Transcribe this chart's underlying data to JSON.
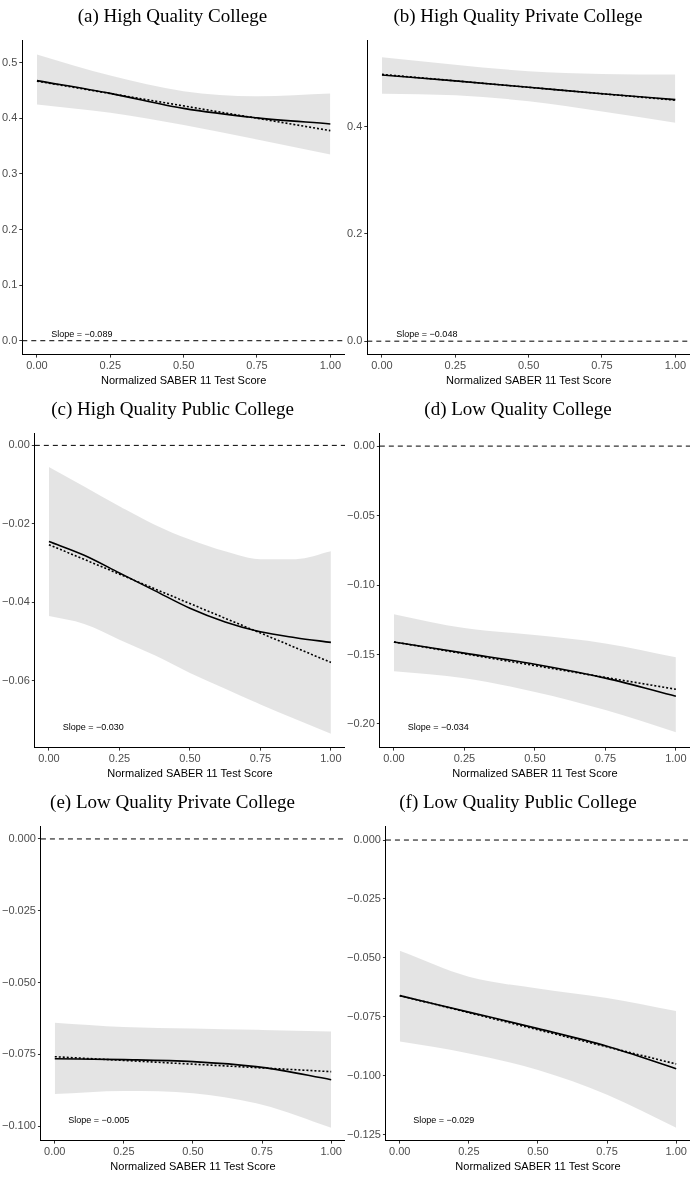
{
  "chart_data": [
    {
      "type": "line",
      "title": "(a) High Quality College",
      "xlabel": "Normalized SABER 11 Test Score",
      "xlim": [
        -0.05,
        1.05
      ],
      "xticks": [
        {
          "value": 0,
          "label": "0.00"
        },
        {
          "value": 0.25,
          "label": "0.25"
        },
        {
          "value": 0.5,
          "label": "0.50"
        },
        {
          "value": 0.75,
          "label": "0.75"
        },
        {
          "value": 1,
          "label": "1.00"
        }
      ],
      "ylim": [
        -0.025,
        0.54
      ],
      "yticks": [
        {
          "value": 0,
          "label": "0.0"
        },
        0.1,
        0.2,
        0.3,
        0.4,
        0.5
      ],
      "grid": false,
      "legend": false,
      "marker": "none",
      "ref_lines": [
        {
          "axis": "y",
          "value": 0,
          "line_style": "dashed",
          "color": "#000000"
        }
      ],
      "annotations": [
        "Slope = −0.089"
      ],
      "series": [
        {
          "color": "#000000",
          "line_style": "solid",
          "x": [
            0,
            0.25,
            0.5,
            0.75,
            1
          ],
          "values": [
            0.468,
            0.445,
            0.418,
            0.401,
            0.39
          ],
          "lower": [
            0.425,
            0.41,
            0.388,
            0.362,
            0.335
          ],
          "upper": [
            0.515,
            0.477,
            0.449,
            0.44,
            0.445
          ]
        },
        {
          "color": "#000000",
          "line_style": "dotted",
          "x": [
            0,
            1
          ],
          "values": [
            0.467,
            0.378
          ]
        }
      ]
    },
    {
      "type": "line",
      "title": "(b) High Quality Private College",
      "xlabel": "Normalized SABER 11 Test Score",
      "xlim": [
        -0.05,
        1.05
      ],
      "xticks": [
        {
          "value": 0,
          "label": "0.00"
        },
        {
          "value": 0.25,
          "label": "0.25"
        },
        {
          "value": 0.5,
          "label": "0.50"
        },
        {
          "value": 0.75,
          "label": "0.75"
        },
        {
          "value": 1,
          "label": "1.00"
        }
      ],
      "ylim": [
        -0.025,
        0.56
      ],
      "yticks": [
        {
          "value": 0,
          "label": "0.0"
        },
        0.2,
        0.4
      ],
      "grid": false,
      "legend": false,
      "marker": "none",
      "ref_lines": [
        {
          "axis": "y",
          "value": 0,
          "line_style": "dashed",
          "color": "#000000"
        }
      ],
      "annotations": [
        "Slope = −0.048"
      ],
      "series": [
        {
          "color": "#000000",
          "line_style": "solid",
          "x": [
            0,
            0.25,
            0.5,
            0.75,
            1
          ],
          "values": [
            0.496,
            0.485,
            0.473,
            0.461,
            0.45
          ],
          "lower": [
            0.461,
            0.458,
            0.447,
            0.428,
            0.407
          ],
          "upper": [
            0.529,
            0.515,
            0.503,
            0.498,
            0.497
          ]
        },
        {
          "color": "#000000",
          "line_style": "dotted",
          "x": [
            0,
            1
          ],
          "values": [
            0.497,
            0.449
          ]
        }
      ]
    },
    {
      "type": "line",
      "title": "(c) High Quality Public College",
      "xlabel": "Normalized SABER 11 Test Score",
      "xlim": [
        -0.05,
        1.05
      ],
      "xticks": [
        {
          "value": 0,
          "label": "0.00"
        },
        {
          "value": 0.25,
          "label": "0.25"
        },
        {
          "value": 0.5,
          "label": "0.50"
        },
        {
          "value": 0.75,
          "label": "0.75"
        },
        {
          "value": 1,
          "label": "1.00"
        }
      ],
      "ylim": [
        -0.077,
        0.003
      ],
      "yticks": [
        {
          "value": 0,
          "label": "0.00"
        },
        {
          "value": -0.02,
          "label": "−0.02"
        },
        {
          "value": -0.04,
          "label": "−0.04"
        },
        {
          "value": -0.06,
          "label": "−0.06"
        }
      ],
      "grid": false,
      "legend": false,
      "marker": "none",
      "ref_lines": [
        {
          "axis": "y",
          "value": 0,
          "line_style": "dashed",
          "color": "#000000"
        }
      ],
      "annotations": [
        "Slope = −0.030"
      ],
      "series": [
        {
          "color": "#000000",
          "line_style": "solid",
          "x": [
            0,
            0.125,
            0.25,
            0.375,
            0.5,
            0.625,
            0.75,
            0.875,
            1
          ],
          "values": [
            -0.0245,
            -0.028,
            -0.0325,
            -0.037,
            -0.0415,
            -0.045,
            -0.0475,
            -0.049,
            -0.0502
          ],
          "lower": [
            -0.0435,
            -0.0455,
            -0.0495,
            -0.0535,
            -0.058,
            -0.062,
            -0.066,
            -0.0698,
            -0.0735
          ],
          "upper": [
            -0.0055,
            -0.0105,
            -0.0155,
            -0.0202,
            -0.024,
            -0.027,
            -0.029,
            -0.029,
            -0.027
          ]
        },
        {
          "color": "#000000",
          "line_style": "dotted",
          "x": [
            0,
            1
          ],
          "values": [
            -0.0253,
            -0.0553
          ]
        }
      ]
    },
    {
      "type": "line",
      "title": "(d) Low Quality College",
      "xlabel": "Normalized SABER 11 Test Score",
      "xlim": [
        -0.05,
        1.05
      ],
      "xticks": [
        {
          "value": 0,
          "label": "0.00"
        },
        {
          "value": 0.25,
          "label": "0.25"
        },
        {
          "value": 0.5,
          "label": "0.50"
        },
        {
          "value": 0.75,
          "label": "0.75"
        },
        {
          "value": 1,
          "label": "1.00"
        }
      ],
      "ylim": [
        -0.217,
        0.009
      ],
      "yticks": [
        {
          "value": 0,
          "label": "0.00"
        },
        {
          "value": -0.05,
          "label": "−0.05"
        },
        {
          "value": -0.1,
          "label": "−0.10"
        },
        {
          "value": -0.15,
          "label": "−0.15"
        },
        {
          "value": -0.2,
          "label": "−0.20"
        }
      ],
      "grid": false,
      "legend": false,
      "marker": "none",
      "ref_lines": [
        {
          "axis": "y",
          "value": 0,
          "line_style": "dashed",
          "color": "#000000"
        }
      ],
      "annotations": [
        "Slope = −0.034"
      ],
      "series": [
        {
          "color": "#000000",
          "line_style": "solid",
          "x": [
            0,
            0.25,
            0.5,
            0.75,
            1
          ],
          "values": [
            -0.141,
            -0.149,
            -0.157,
            -0.167,
            -0.18
          ],
          "lower": [
            -0.162,
            -0.167,
            -0.177,
            -0.19,
            -0.206
          ],
          "upper": [
            -0.121,
            -0.131,
            -0.136,
            -0.142,
            -0.152
          ]
        },
        {
          "color": "#000000",
          "line_style": "dotted",
          "x": [
            0,
            1
          ],
          "values": [
            -0.141,
            -0.175
          ]
        }
      ]
    },
    {
      "type": "line",
      "title": "(e) Low Quality Private College",
      "xlabel": "Normalized SABER 11 Test Score",
      "xlim": [
        -0.05,
        1.05
      ],
      "xticks": [
        {
          "value": 0,
          "label": "0.00"
        },
        {
          "value": 0.25,
          "label": "0.25"
        },
        {
          "value": 0.5,
          "label": "0.50"
        },
        {
          "value": 0.75,
          "label": "0.75"
        },
        {
          "value": 1,
          "label": "1.00"
        }
      ],
      "ylim": [
        -0.105,
        0.0043
      ],
      "yticks": [
        {
          "value": 0,
          "label": "0.000"
        },
        {
          "value": -0.025,
          "label": "−0.025"
        },
        {
          "value": -0.05,
          "label": "−0.050"
        },
        {
          "value": -0.075,
          "label": "−0.075"
        },
        {
          "value": -0.1,
          "label": "−0.100"
        }
      ],
      "grid": false,
      "legend": false,
      "marker": "none",
      "ref_lines": [
        {
          "axis": "y",
          "value": 0,
          "line_style": "dashed",
          "color": "#000000"
        }
      ],
      "annotations": [
        "Slope = −0.005"
      ],
      "series": [
        {
          "color": "#000000",
          "line_style": "solid",
          "x": [
            0,
            0.25,
            0.5,
            0.75,
            1
          ],
          "values": [
            -0.0765,
            -0.0768,
            -0.0775,
            -0.0795,
            -0.0838
          ],
          "lower": [
            -0.0888,
            -0.0877,
            -0.0885,
            -0.0925,
            -0.1005
          ],
          "upper": [
            -0.064,
            -0.0655,
            -0.066,
            -0.0665,
            -0.067
          ]
        },
        {
          "color": "#000000",
          "line_style": "dotted",
          "x": [
            0,
            1
          ],
          "values": [
            -0.0758,
            -0.081
          ]
        }
      ]
    },
    {
      "type": "line",
      "title": "(f) Low Quality Public College",
      "xlabel": "Normalized SABER 11 Test Score",
      "xlim": [
        -0.05,
        1.05
      ],
      "xticks": [
        {
          "value": 0,
          "label": "0.00"
        },
        {
          "value": 0.25,
          "label": "0.25"
        },
        {
          "value": 0.5,
          "label": "0.50"
        },
        {
          "value": 0.75,
          "label": "0.75"
        },
        {
          "value": 1,
          "label": "1.00"
        }
      ],
      "ylim": [
        -0.1275,
        0.0057
      ],
      "yticks": [
        {
          "value": 0,
          "label": "0.000"
        },
        {
          "value": -0.025,
          "label": "−0.025"
        },
        {
          "value": -0.05,
          "label": "−0.050"
        },
        {
          "value": -0.075,
          "label": "−0.075"
        },
        {
          "value": -0.1,
          "label": "−0.100"
        },
        {
          "value": -0.125,
          "label": "−0.125"
        }
      ],
      "grid": false,
      "legend": false,
      "marker": "none",
      "ref_lines": [
        {
          "axis": "y",
          "value": 0,
          "line_style": "dashed",
          "color": "#000000"
        }
      ],
      "annotations": [
        "Slope = −0.029"
      ],
      "series": [
        {
          "color": "#000000",
          "line_style": "solid",
          "x": [
            0,
            0.25,
            0.5,
            0.75,
            1
          ],
          "values": [
            -0.066,
            -0.073,
            -0.08,
            -0.0875,
            -0.097
          ],
          "lower": [
            -0.0855,
            -0.0905,
            -0.0975,
            -0.108,
            -0.122
          ],
          "upper": [
            -0.047,
            -0.058,
            -0.063,
            -0.067,
            -0.0725
          ]
        },
        {
          "color": "#000000",
          "line_style": "dotted",
          "x": [
            0,
            1
          ],
          "values": [
            -0.066,
            -0.095
          ]
        }
      ]
    }
  ]
}
